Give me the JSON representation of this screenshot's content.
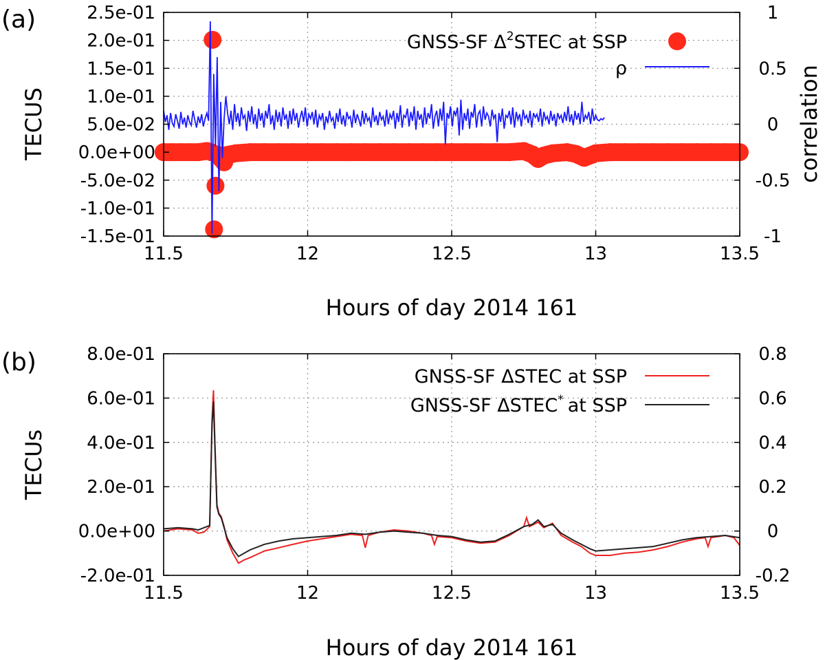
{
  "chart_data": [
    {
      "panel_label": "(a)",
      "type": "scatter",
      "xlabel": "Hours of day 2014 161",
      "ylabel": "TECUS",
      "y2label": "correlation",
      "xlim": [
        11.5,
        13.5
      ],
      "ylim": [
        -0.15,
        0.25
      ],
      "y2lim": [
        -1,
        1
      ],
      "xticks": [
        "11.5",
        "12",
        "12.5",
        "13",
        "13.5"
      ],
      "yticks": [
        "2.5e-01",
        "2.0e-01",
        "1.5e-01",
        "1.0e-01",
        "5.0e-02",
        "0.0e+00",
        "-5.0e-02",
        "-1.0e-01",
        "-1.5e-01"
      ],
      "y2ticks": [
        "1",
        "0.5",
        "0",
        "-0.5",
        "-1"
      ],
      "grid": true,
      "legend_position": "top-right",
      "series": [
        {
          "name": "GNSS-SF Δ²STEC at SSP",
          "legend_main": "GNSS-SF Δ",
          "legend_sup": "2",
          "legend_tail": "STEC at SSP",
          "style": "points",
          "color": "#ff2a1a",
          "points": [
            [
              11.5,
              0.0
            ],
            [
              11.53,
              0.0
            ],
            [
              11.56,
              0.0
            ],
            [
              11.59,
              0.0
            ],
            [
              11.62,
              0.0
            ],
            [
              11.65,
              0.002
            ],
            [
              11.665,
              0.0
            ],
            [
              11.67,
              0.201
            ],
            [
              11.675,
              -0.138
            ],
            [
              11.68,
              -0.06
            ],
            [
              11.69,
              -0.005
            ],
            [
              11.7,
              -0.012
            ],
            [
              11.71,
              -0.018
            ],
            [
              11.72,
              -0.005
            ],
            [
              11.75,
              -0.002
            ],
            [
              11.8,
              0.0
            ],
            [
              11.85,
              0.0
            ],
            [
              11.9,
              0.0
            ],
            [
              11.95,
              0.0
            ],
            [
              12.0,
              0.0
            ],
            [
              12.05,
              0.0
            ],
            [
              12.1,
              0.0
            ],
            [
              12.15,
              0.0
            ],
            [
              12.2,
              0.0
            ],
            [
              12.25,
              0.0
            ],
            [
              12.3,
              0.0
            ],
            [
              12.35,
              0.0
            ],
            [
              12.4,
              0.0
            ],
            [
              12.45,
              0.0
            ],
            [
              12.5,
              0.0
            ],
            [
              12.55,
              0.0
            ],
            [
              12.6,
              0.0
            ],
            [
              12.65,
              0.0
            ],
            [
              12.7,
              0.0
            ],
            [
              12.75,
              0.002
            ],
            [
              12.78,
              -0.004
            ],
            [
              12.8,
              -0.012
            ],
            [
              12.82,
              -0.006
            ],
            [
              12.85,
              -0.002
            ],
            [
              12.9,
              0.0
            ],
            [
              12.93,
              -0.003
            ],
            [
              12.96,
              -0.01
            ],
            [
              13.0,
              -0.002
            ],
            [
              13.05,
              0.0
            ],
            [
              13.1,
              0.0
            ],
            [
              13.15,
              0.0
            ],
            [
              13.2,
              0.0
            ],
            [
              13.25,
              0.0
            ],
            [
              13.3,
              0.0
            ],
            [
              13.35,
              0.0
            ],
            [
              13.4,
              0.0
            ],
            [
              13.45,
              0.0
            ],
            [
              13.5,
              0.0
            ]
          ]
        },
        {
          "name": "ρ",
          "style": "line",
          "axis": "right",
          "color": "#1a1aff",
          "x_start": 11.5,
          "x_step": 0.006,
          "values": [
            0.12,
            0.02,
            0.08,
            -0.05,
            0.1,
            0.01,
            -0.02,
            0.09,
            0.03,
            -0.04,
            0.11,
            0.0,
            0.06,
            -0.03,
            0.08,
            0.02,
            -0.01,
            0.12,
            0.04,
            -0.03,
            0.07,
            0.01,
            0.09,
            -0.02,
            0.05,
            0.1,
            0.03,
            0.92,
            -0.98,
            0.45,
            -0.2,
            0.6,
            -0.6,
            0.2,
            -0.3,
            0.05,
            0.25,
            0.1,
            0.0,
            0.12,
            -0.05,
            0.18,
            0.02,
            0.1,
            -0.02,
            0.15,
            0.05,
            0.08,
            -0.06,
            0.12,
            0.02,
            0.16,
            0.0,
            0.09,
            -0.04,
            0.14,
            0.03,
            0.1,
            -0.03,
            0.12,
            0.05,
            0.18,
            0.0,
            0.08,
            -0.05,
            0.13,
            0.02,
            0.11,
            -0.02,
            0.15,
            0.04,
            0.09,
            -0.04,
            0.12,
            0.0,
            0.14,
            0.03,
            0.1,
            -0.03,
            0.06,
            0.12,
            0.02,
            0.15,
            -0.02,
            0.09,
            0.05,
            0.11,
            0.0,
            0.13,
            -0.03,
            0.08,
            0.04,
            0.1,
            -0.05,
            0.07,
            0.01,
            0.12,
            0.03,
            0.06,
            -0.04,
            0.1,
            0.02,
            0.14,
            0.0,
            0.08,
            -0.02,
            0.11,
            0.05,
            0.07,
            -0.03,
            0.13,
            0.01,
            0.09,
            0.04,
            -0.02,
            0.12,
            0.0,
            0.1,
            0.03,
            0.06,
            -0.03,
            0.15,
            0.02,
            0.08,
            -0.01,
            0.11,
            0.04,
            0.07,
            -0.02,
            0.13,
            0.0,
            0.09,
            0.05,
            0.12,
            -0.04,
            0.1,
            0.02,
            0.17,
            -0.03,
            0.08,
            0.06,
            0.14,
            -0.02,
            0.11,
            0.03,
            0.16,
            -0.05,
            0.12,
            0.04,
            0.09,
            -0.03,
            0.15,
            0.0,
            0.1,
            0.05,
            0.18,
            -0.04,
            0.07,
            0.12,
            -0.02,
            0.14,
            0.03,
            0.2,
            -0.18,
            0.1,
            0.05,
            0.16,
            -0.02,
            0.12,
            0.08,
            0.15,
            -0.1,
            0.22,
            -0.05,
            0.1,
            0.03,
            0.14,
            -0.04,
            0.11,
            0.06,
            0.18,
            -0.03,
            0.09,
            0.12,
            -0.02,
            0.16,
            0.04,
            0.1,
            0.07,
            -0.02,
            0.13,
            0.05,
            0.09,
            -0.16,
            0.1,
            0.02,
            0.14,
            -0.04,
            0.08,
            0.06,
            0.12,
            0.0,
            0.15,
            -0.03,
            0.11,
            0.04,
            0.09,
            -0.02,
            0.13,
            0.05,
            0.08,
            0.01,
            0.12,
            -0.03,
            0.1,
            0.06,
            0.09,
            0.02,
            0.14,
            -0.02,
            0.11,
            0.04,
            0.07,
            0.0,
            0.12,
            0.03,
            0.09,
            -0.02,
            0.1,
            0.05,
            0.08,
            0.01,
            0.11,
            0.03,
            0.16,
            0.02,
            0.09,
            -0.01,
            0.12,
            0.04,
            0.1,
            0.0,
            0.2,
            0.02,
            0.08,
            0.05,
            0.11,
            0.0,
            0.14,
            0.03,
            0.08,
            0.04,
            0.03,
            0.05,
            0.04,
            0.06
          ]
        }
      ]
    },
    {
      "panel_label": "(b)",
      "type": "line",
      "xlabel": "Hours of day 2014 161",
      "ylabel": "TECUs",
      "xlim": [
        11.5,
        13.5
      ],
      "ylim": [
        -0.2,
        0.8
      ],
      "y2lim": [
        -0.2,
        0.8
      ],
      "xticks": [
        "11.5",
        "12",
        "12.5",
        "13",
        "13.5"
      ],
      "yticks": [
        "8.0e-01",
        "6.0e-01",
        "4.0e-01",
        "2.0e-01",
        "0.0e+00",
        "-2.0e-01"
      ],
      "y2ticks": [
        "0.8",
        "0.6",
        "0.4",
        "0.2",
        "0",
        "-0.2"
      ],
      "grid": true,
      "legend_position": "top-right",
      "series": [
        {
          "name": "GNSS-SF ΔSTEC at SSP",
          "legend_main": "GNSS-SF ΔSTEC at SSP",
          "legend_sup": "",
          "legend_tail": "",
          "color": "#ee2222",
          "points": [
            [
              11.5,
              0.0
            ],
            [
              11.55,
              0.01
            ],
            [
              11.6,
              0.005
            ],
            [
              11.62,
              -0.01
            ],
            [
              11.64,
              -0.005
            ],
            [
              11.66,
              0.02
            ],
            [
              11.668,
              0.5
            ],
            [
              11.673,
              0.635
            ],
            [
              11.678,
              0.4
            ],
            [
              11.685,
              0.12
            ],
            [
              11.692,
              0.08
            ],
            [
              11.7,
              0.065
            ],
            [
              11.71,
              0.02
            ],
            [
              11.72,
              -0.04
            ],
            [
              11.74,
              -0.1
            ],
            [
              11.76,
              -0.145
            ],
            [
              11.78,
              -0.13
            ],
            [
              11.8,
              -0.12
            ],
            [
              11.85,
              -0.09
            ],
            [
              11.9,
              -0.075
            ],
            [
              11.95,
              -0.06
            ],
            [
              12.0,
              -0.045
            ],
            [
              12.05,
              -0.035
            ],
            [
              12.1,
              -0.025
            ],
            [
              12.15,
              -0.015
            ],
            [
              12.19,
              -0.02
            ],
            [
              12.2,
              -0.075
            ],
            [
              12.21,
              -0.02
            ],
            [
              12.25,
              -0.005
            ],
            [
              12.3,
              0.005
            ],
            [
              12.35,
              0.0
            ],
            [
              12.4,
              -0.01
            ],
            [
              12.43,
              -0.02
            ],
            [
              12.44,
              -0.06
            ],
            [
              12.45,
              -0.025
            ],
            [
              12.5,
              -0.03
            ],
            [
              12.55,
              -0.045
            ],
            [
              12.6,
              -0.055
            ],
            [
              12.65,
              -0.05
            ],
            [
              12.7,
              -0.02
            ],
            [
              12.75,
              0.02
            ],
            [
              12.76,
              0.06
            ],
            [
              12.77,
              0.02
            ],
            [
              12.8,
              0.04
            ],
            [
              12.82,
              0.015
            ],
            [
              12.85,
              0.035
            ],
            [
              12.88,
              -0.02
            ],
            [
              12.92,
              -0.05
            ],
            [
              12.95,
              -0.07
            ],
            [
              12.98,
              -0.1
            ],
            [
              13.0,
              -0.11
            ],
            [
              13.05,
              -0.11
            ],
            [
              13.1,
              -0.1
            ],
            [
              13.15,
              -0.095
            ],
            [
              13.2,
              -0.085
            ],
            [
              13.25,
              -0.07
            ],
            [
              13.3,
              -0.05
            ],
            [
              13.35,
              -0.035
            ],
            [
              13.38,
              -0.03
            ],
            [
              13.39,
              -0.07
            ],
            [
              13.4,
              -0.03
            ],
            [
              13.45,
              -0.02
            ],
            [
              13.48,
              -0.03
            ],
            [
              13.5,
              -0.065
            ]
          ]
        },
        {
          "name": "GNSS-SF ΔSTEC* at SSP",
          "legend_main": "GNSS-SF ΔSTEC",
          "legend_sup": "*",
          "legend_tail": "at SSP",
          "color": "#222222",
          "points": [
            [
              11.5,
              0.01
            ],
            [
              11.55,
              0.015
            ],
            [
              11.6,
              0.01
            ],
            [
              11.62,
              0.005
            ],
            [
              11.66,
              0.025
            ],
            [
              11.668,
              0.48
            ],
            [
              11.673,
              0.585
            ],
            [
              11.678,
              0.38
            ],
            [
              11.685,
              0.11
            ],
            [
              11.692,
              0.075
            ],
            [
              11.7,
              0.06
            ],
            [
              11.71,
              0.015
            ],
            [
              11.72,
              -0.03
            ],
            [
              11.74,
              -0.08
            ],
            [
              11.76,
              -0.115
            ],
            [
              11.78,
              -0.1
            ],
            [
              11.8,
              -0.085
            ],
            [
              11.85,
              -0.06
            ],
            [
              11.9,
              -0.045
            ],
            [
              11.95,
              -0.035
            ],
            [
              12.0,
              -0.03
            ],
            [
              12.05,
              -0.025
            ],
            [
              12.1,
              -0.02
            ],
            [
              12.15,
              -0.01
            ],
            [
              12.2,
              -0.015
            ],
            [
              12.25,
              -0.005
            ],
            [
              12.3,
              0.0
            ],
            [
              12.35,
              -0.005
            ],
            [
              12.4,
              -0.01
            ],
            [
              12.45,
              -0.02
            ],
            [
              12.5,
              -0.025
            ],
            [
              12.55,
              -0.04
            ],
            [
              12.6,
              -0.05
            ],
            [
              12.65,
              -0.045
            ],
            [
              12.7,
              -0.015
            ],
            [
              12.75,
              0.02
            ],
            [
              12.78,
              0.03
            ],
            [
              12.8,
              0.05
            ],
            [
              12.82,
              0.02
            ],
            [
              12.85,
              0.03
            ],
            [
              12.88,
              -0.01
            ],
            [
              12.92,
              -0.04
            ],
            [
              12.95,
              -0.06
            ],
            [
              12.98,
              -0.08
            ],
            [
              13.0,
              -0.09
            ],
            [
              13.05,
              -0.085
            ],
            [
              13.1,
              -0.08
            ],
            [
              13.15,
              -0.075
            ],
            [
              13.2,
              -0.07
            ],
            [
              13.25,
              -0.055
            ],
            [
              13.3,
              -0.04
            ],
            [
              13.35,
              -0.03
            ],
            [
              13.4,
              -0.025
            ],
            [
              13.45,
              -0.02
            ],
            [
              13.5,
              -0.03
            ]
          ]
        }
      ]
    }
  ]
}
